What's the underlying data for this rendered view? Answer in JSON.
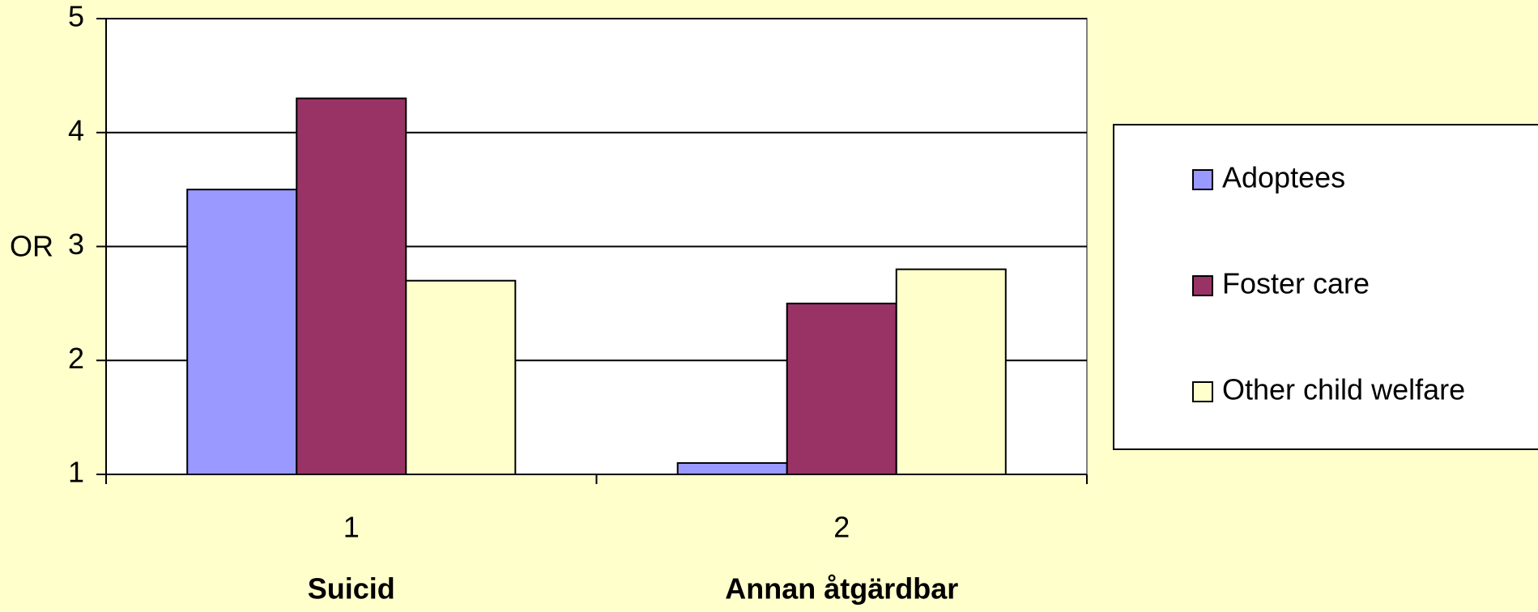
{
  "chart_data": {
    "type": "bar",
    "y_label": "OR",
    "categories": [
      "1",
      "2"
    ],
    "group_labels": [
      "Suicid",
      "Annan åtgärdbar"
    ],
    "series": [
      {
        "name": "Adoptees",
        "color": "#9999ff",
        "values": [
          3.5,
          1.1
        ]
      },
      {
        "name": "Foster care",
        "color": "#993366",
        "values": [
          4.3,
          2.5
        ]
      },
      {
        "name": "Other child welfare",
        "color": "#ffffcc",
        "values": [
          2.7,
          2.8
        ]
      }
    ],
    "ylim": [
      1,
      5
    ],
    "yticks": [
      1,
      2,
      3,
      4,
      5
    ],
    "grid": true,
    "legend": "right"
  }
}
